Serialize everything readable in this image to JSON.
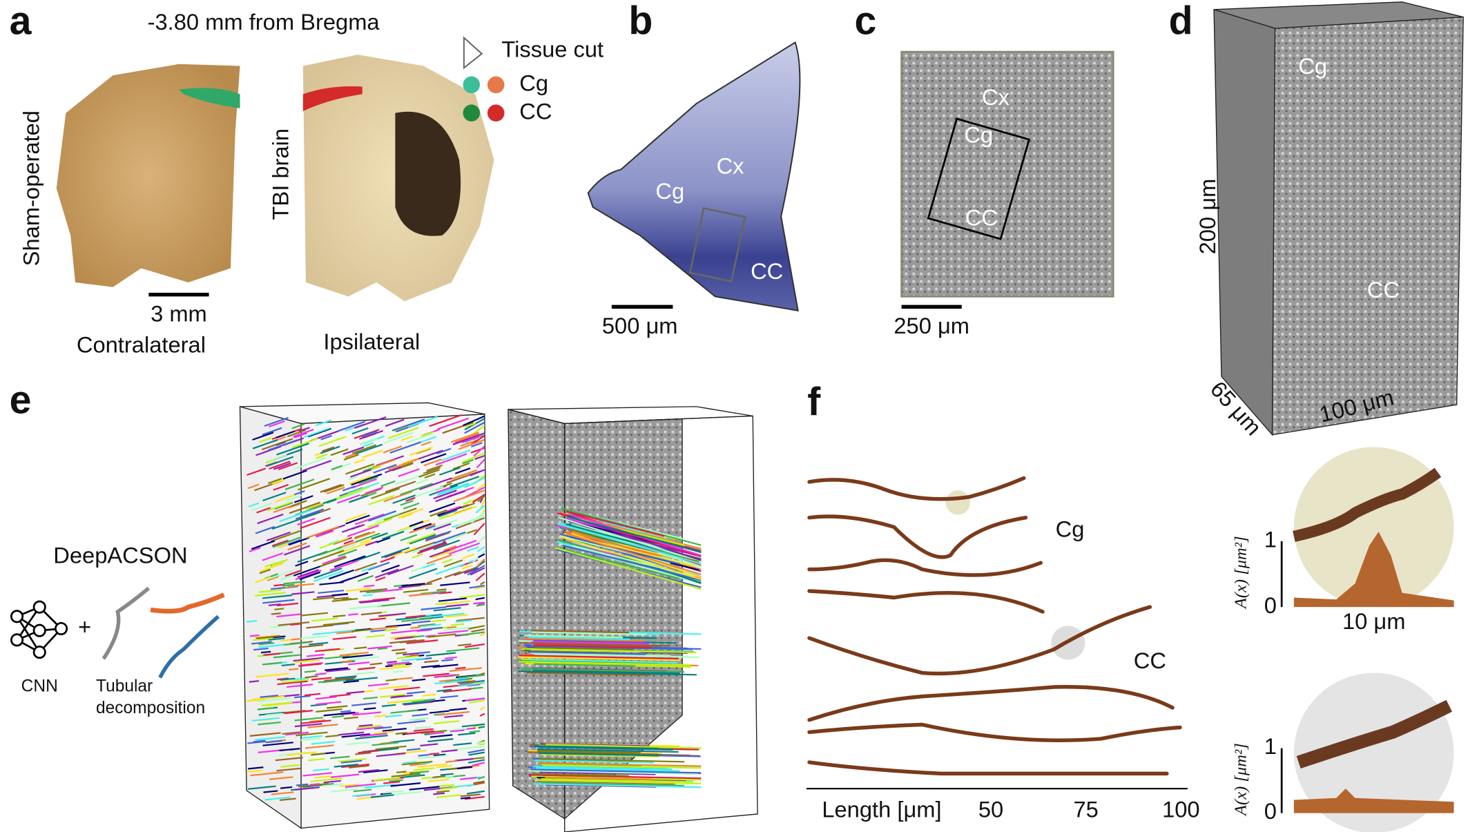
{
  "panel_a": {
    "label": "a",
    "title": "-3.80 mm from Bregma",
    "left_label": "Sham-operated",
    "right_label": "TBI brain",
    "scale_bar": "3 mm",
    "left_caption": "Contralateral",
    "right_caption": "Ipsilateral",
    "legend": [
      "Tissue cut",
      "Cg",
      "CC"
    ]
  },
  "panel_b": {
    "label": "b",
    "regions": [
      "Cx",
      "Cg",
      "CC"
    ],
    "scale_bar": "500 μm"
  },
  "panel_c": {
    "label": "c",
    "regions": [
      "Cx",
      "Cg",
      "CC"
    ],
    "scale_bar": "250 μm"
  },
  "panel_d": {
    "label": "d",
    "regions": [
      "Cg",
      "CC"
    ],
    "height": "200 μm",
    "depth": "65 μm",
    "width": "100 μm"
  },
  "panel_e": {
    "label": "e",
    "method": "DeepACSON",
    "plus": "+",
    "cnn": "CNN",
    "tubular": [
      "Tubular",
      "decomposition"
    ]
  },
  "panel_f": {
    "label": "f",
    "regions": [
      "Cg",
      "CC"
    ],
    "x_label": "Length [μm]",
    "x_ticks": [
      50,
      75,
      100
    ],
    "insets": [
      {
        "y_label": "A(x) [μm²]",
        "y_ticks": [
          1,
          0
        ],
        "scale_bar": "10 μm"
      },
      {
        "y_label": "A(x) [μm²]",
        "y_ticks": [
          1,
          0
        ]
      }
    ]
  }
}
